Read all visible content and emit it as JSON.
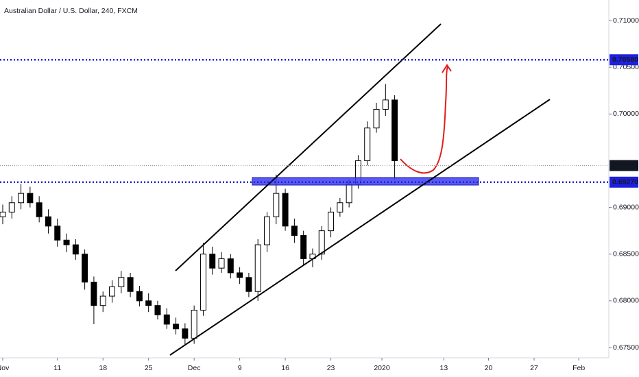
{
  "chart_data": {
    "type": "candlestick",
    "title": "Australian Dollar / U.S. Dollar, 240, FXCM",
    "up_color": "#ffffff",
    "down_color": "#000000",
    "x": [
      -6,
      -5,
      -4,
      -3,
      -2,
      -1,
      0,
      1,
      2,
      3,
      4,
      5,
      6,
      7,
      8,
      9,
      10,
      11,
      12,
      13,
      14,
      15,
      16,
      17,
      18,
      19,
      20,
      21,
      22,
      23,
      24,
      25,
      26,
      27,
      28,
      29,
      30,
      31,
      32,
      33,
      34,
      35,
      36,
      37
    ],
    "open": [
      0.689,
      0.6895,
      0.6905,
      0.6915,
      0.6905,
      0.689,
      0.688,
      0.6865,
      0.686,
      0.685,
      0.682,
      0.6795,
      0.6805,
      0.6815,
      0.6825,
      0.681,
      0.68,
      0.6795,
      0.6785,
      0.6775,
      0.677,
      0.676,
      0.679,
      0.685,
      0.6835,
      0.6845,
      0.683,
      0.6825,
      0.681,
      0.686,
      0.689,
      0.6915,
      0.688,
      0.687,
      0.6845,
      0.685,
      0.6875,
      0.6895,
      0.6905,
      0.6925,
      0.695,
      0.6985,
      0.7005,
      0.7015
    ],
    "high": [
      0.6903,
      0.6912,
      0.6925,
      0.6922,
      0.6912,
      0.6898,
      0.6888,
      0.6872,
      0.6866,
      0.6855,
      0.6826,
      0.681,
      0.6822,
      0.6832,
      0.683,
      0.6816,
      0.6808,
      0.68,
      0.6792,
      0.6782,
      0.6776,
      0.6795,
      0.6862,
      0.6858,
      0.6852,
      0.685,
      0.6836,
      0.683,
      0.6866,
      0.6895,
      0.6935,
      0.692,
      0.6888,
      0.6875,
      0.6856,
      0.688,
      0.69,
      0.691,
      0.693,
      0.6956,
      0.6992,
      0.7012,
      0.7032,
      0.702
    ],
    "low": [
      0.6882,
      0.6888,
      0.6898,
      0.69,
      0.6884,
      0.6872,
      0.6858,
      0.6852,
      0.6844,
      0.6812,
      0.6775,
      0.6788,
      0.6798,
      0.6808,
      0.6804,
      0.6794,
      0.6788,
      0.678,
      0.677,
      0.6764,
      0.6752,
      0.6754,
      0.6784,
      0.6828,
      0.683,
      0.6824,
      0.6818,
      0.6804,
      0.68,
      0.6852,
      0.6882,
      0.6875,
      0.6862,
      0.6838,
      0.6836,
      0.6844,
      0.6868,
      0.689,
      0.69,
      0.692,
      0.6945,
      0.698,
      0.6998,
      0.693
    ],
    "close": [
      0.6895,
      0.6905,
      0.6915,
      0.6905,
      0.689,
      0.688,
      0.6865,
      0.686,
      0.685,
      0.682,
      0.6795,
      0.6805,
      0.6815,
      0.6825,
      0.681,
      0.68,
      0.6795,
      0.6785,
      0.6775,
      0.677,
      0.676,
      0.679,
      0.685,
      0.6835,
      0.6845,
      0.683,
      0.6825,
      0.681,
      0.686,
      0.689,
      0.6915,
      0.688,
      0.687,
      0.6845,
      0.685,
      0.6875,
      0.6895,
      0.6905,
      0.6925,
      0.695,
      0.6985,
      0.7005,
      0.7015,
      0.695
    ],
    "xlim": [
      -6.3,
      60.5
    ],
    "xticks": [
      {
        "value": -6,
        "label": "Nov"
      },
      {
        "value": 0,
        "label": "11"
      },
      {
        "value": 5,
        "label": "18"
      },
      {
        "value": 10,
        "label": "25"
      },
      {
        "value": 15,
        "label": "Dec"
      },
      {
        "value": 20,
        "label": "9"
      },
      {
        "value": 25,
        "label": "16"
      },
      {
        "value": 30,
        "label": "23"
      },
      {
        "value": 35.6,
        "label": "2020"
      },
      {
        "value": 42.4,
        "label": "13"
      },
      {
        "value": 47.3,
        "label": "20"
      },
      {
        "value": 52.3,
        "label": "27"
      },
      {
        "value": 57.2,
        "label": "Feb"
      }
    ],
    "ylim": [
      0.6739,
      0.7122
    ],
    "yticks": [
      {
        "value": 0.71,
        "label": "0.71000"
      },
      {
        "value": 0.705,
        "label": "0.70500"
      },
      {
        "value": 0.7,
        "label": "0.70000"
      },
      {
        "value": 0.69,
        "label": "0.69000"
      },
      {
        "value": 0.685,
        "label": "0.68500"
      },
      {
        "value": 0.68,
        "label": "0.68000"
      },
      {
        "value": 0.675,
        "label": "0.67500"
      }
    ],
    "levels": [
      {
        "value": 0.7058,
        "label": "0.70580",
        "color": "#1f1fe0",
        "kind": "level"
      },
      {
        "value": 0.6927,
        "label": "0.69270",
        "color": "#1f1fe0",
        "kind": "level"
      },
      {
        "value": 0.69448,
        "label": "0.69448",
        "color": "#131722",
        "kind": "price"
      }
    ]
  }
}
